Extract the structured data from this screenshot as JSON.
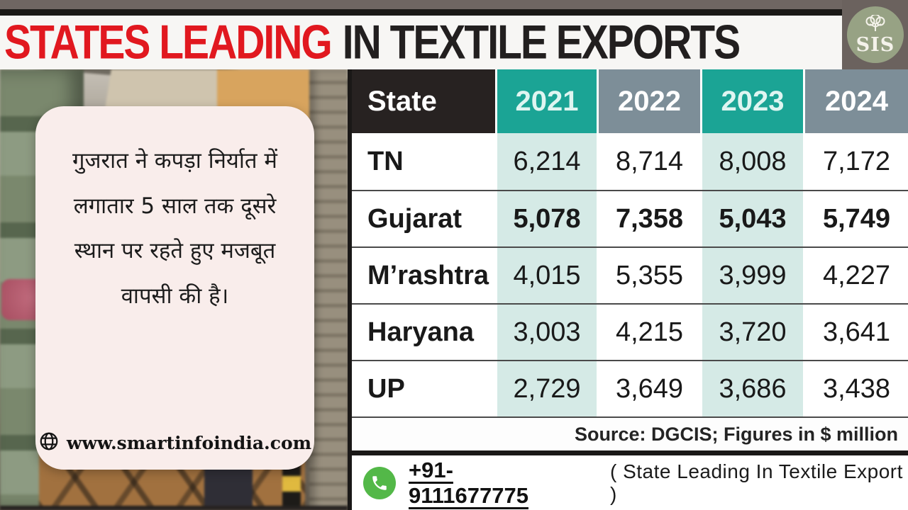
{
  "header": {
    "title_red": "STATES LEADING",
    "title_dark": "IN TEXTILE EXPORTS",
    "logo_text": "SIS"
  },
  "quote_card": {
    "text": "गुजरात ने कपड़ा निर्यात में लगातार 5 साल तक दूसरे स्थान पर रहते हुए मजबूत वापसी की है।",
    "website": "www.smartinfoindia.com"
  },
  "table": {
    "state_header": "State",
    "year_headers": [
      "2021",
      "2022",
      "2023",
      "2024"
    ],
    "rows": [
      {
        "state": "TN",
        "values": [
          "6,214",
          "8,714",
          "8,008",
          "7,172"
        ],
        "bold": false
      },
      {
        "state": "Gujarat",
        "values": [
          "5,078",
          "7,358",
          "5,043",
          "5,749"
        ],
        "bold": true
      },
      {
        "state": "M’rashtra",
        "values": [
          "4,015",
          "5,355",
          "3,999",
          "4,227"
        ],
        "bold": false
      },
      {
        "state": "Haryana",
        "values": [
          "3,003",
          "4,215",
          "3,720",
          "3,641"
        ],
        "bold": false
      },
      {
        "state": "UP",
        "values": [
          "2,729",
          "3,649",
          "3,686",
          "3,438"
        ],
        "bold": false
      }
    ],
    "source_note": "Source: DGCIS; Figures in $ million"
  },
  "contact": {
    "phone": "+91-9111677775",
    "caption": "( State Leading In Textile Export )"
  },
  "icons": {
    "website": "globe-icon",
    "contact": "phone-icon",
    "logo": "cotton-plant-icon"
  },
  "colors": {
    "accent_teal": "#1ba495",
    "accent_gray_blue": "#7d8e98",
    "light_teal": "#d5eae6",
    "title_red": "#e1181f",
    "header_dark": "#272221",
    "card_bg": "#f9edeb",
    "logo_green": "#97a284",
    "phone_green": "#53b848"
  },
  "chart_data": {
    "type": "table",
    "title": "STATES LEADING IN TEXTILE EXPORTS",
    "columns": [
      "State",
      "2021",
      "2022",
      "2023",
      "2024"
    ],
    "rows": [
      [
        "TN",
        6214,
        8714,
        8008,
        7172
      ],
      [
        "Gujarat",
        5078,
        7358,
        5043,
        5749
      ],
      [
        "M’rashtra",
        4015,
        5355,
        3999,
        4227
      ],
      [
        "Haryana",
        3003,
        4215,
        3720,
        3641
      ],
      [
        "UP",
        2729,
        3649,
        3686,
        3438
      ]
    ],
    "units": "$ million",
    "source": "Source: DGCIS; Figures in $ million",
    "highlighted_row": "Gujarat",
    "highlighted_columns": [
      "2021",
      "2023"
    ]
  }
}
